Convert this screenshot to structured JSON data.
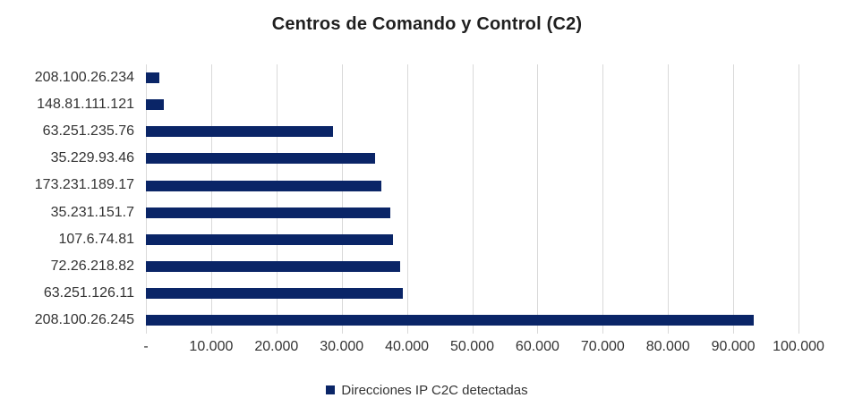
{
  "chart_data": {
    "type": "bar",
    "orientation": "horizontal",
    "title": "Centros de Comando y Control (C2)",
    "series_name": "Direcciones IP C2C detectadas",
    "categories": [
      "208.100.26.234",
      "148.81.111.121",
      "63.251.235.76",
      "35.229.93.46",
      "173.231.189.17",
      "35.231.151.7",
      "107.6.74.81",
      "72.26.218.82",
      "63.251.126.11",
      "208.100.26.245"
    ],
    "values": [
      2000,
      2800,
      28700,
      35100,
      36100,
      37400,
      37900,
      38900,
      39400,
      93200
    ],
    "x_tick_labels": [
      "-",
      "10.000",
      "20.000",
      "30.000",
      "40.000",
      "50.000",
      "60.000",
      "70.000",
      "80.000",
      "90.000",
      "100.000"
    ],
    "xlim": [
      0,
      100000
    ],
    "grid": true,
    "legend_position": "bottom",
    "colors": {
      "bar": "#0a2567",
      "gridline": "#d9d9d9",
      "title_text": "#1f1f1f",
      "axis_text": "#333333",
      "legend_text": "#333333"
    }
  }
}
